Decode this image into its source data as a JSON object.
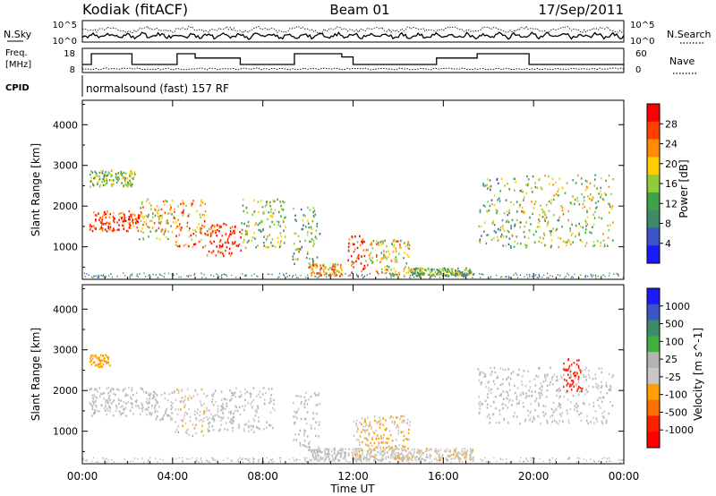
{
  "header": {
    "station": "Kodiak (fitACF)",
    "beam": "Beam 01",
    "date": "17/Sep/2011"
  },
  "noise_panel": {
    "left_label": "N.Sky",
    "right_label": "N.Search",
    "tick_top_left": "10^5",
    "tick_bottom_left": "10^0",
    "tick_top_right": "10^5",
    "tick_bottom_right": "10^0"
  },
  "freq_panel": {
    "left_label_line1": "Freq.",
    "left_label_line2": "[MHz]",
    "right_label": "Nave",
    "left_ticks": [
      "18",
      "8"
    ],
    "right_ticks": [
      "60",
      "0"
    ]
  },
  "cpid_panel": {
    "label": "CPID",
    "mode": "normalsound (fast) 157 RF"
  },
  "colors": {
    "power_scale": [
      "#1a1aff",
      "#3b55c8",
      "#3f8a6a",
      "#3fa24a",
      "#8fcc3a",
      "#ffcc00",
      "#ff8c00",
      "#ff4000",
      "#ff0000"
    ],
    "velocity_scale": [
      "#1a1aff",
      "#3b55c8",
      "#3f8a6a",
      "#40b040",
      "#b4b4b4",
      "#c8c8c8",
      "#ffa000",
      "#ff7000",
      "#ff2000",
      "#ff0000"
    ],
    "ground_scatter": "#b4b4b4"
  },
  "chart_data": [
    {
      "type": "heatmap",
      "panel": "power",
      "x": [
        "00:00",
        "04:00",
        "08:00",
        "12:00",
        "16:00",
        "20:00",
        "00:00"
      ],
      "xlim_hours": [
        0,
        24
      ],
      "ylabel": "Slant Range [km]",
      "yticks": [
        1000,
        2000,
        3000,
        4000
      ],
      "ylim": [
        200,
        4600
      ],
      "colorbar_label": "Power [dB]",
      "colorbar_ticks": [
        "28",
        "24",
        "20",
        "16",
        "12",
        "8",
        "4"
      ],
      "clim": [
        0,
        30
      ],
      "echo_regions": [
        {
          "t0": 0.3,
          "t1": 2.5,
          "r0": 1400,
          "r1": 1900,
          "level": 26
        },
        {
          "t0": 0.3,
          "t1": 2.3,
          "r0": 2500,
          "r1": 2900,
          "level": 14
        },
        {
          "t0": 2.5,
          "t1": 4.0,
          "r0": 1200,
          "r1": 2200,
          "level": 18
        },
        {
          "t0": 4.0,
          "t1": 5.5,
          "r0": 1000,
          "r1": 2200,
          "level": 22
        },
        {
          "t0": 5.5,
          "t1": 7.0,
          "r0": 800,
          "r1": 1600,
          "level": 27
        },
        {
          "t0": 7.0,
          "t1": 9.0,
          "r0": 1000,
          "r1": 2200,
          "level": 15
        },
        {
          "t0": 9.3,
          "t1": 10.5,
          "r0": 600,
          "r1": 2000,
          "level": 12
        },
        {
          "t0": 10.0,
          "t1": 11.5,
          "r0": 300,
          "r1": 600,
          "level": 20
        },
        {
          "t0": 11.7,
          "t1": 12.5,
          "r0": 300,
          "r1": 1300,
          "level": 27
        },
        {
          "t0": 12.5,
          "t1": 14.5,
          "r0": 300,
          "r1": 1200,
          "level": 18
        },
        {
          "t0": 14.5,
          "t1": 17.3,
          "r0": 300,
          "r1": 500,
          "level": 12
        },
        {
          "t0": 17.5,
          "t1": 19.5,
          "r0": 1000,
          "r1": 2700,
          "level": 12
        },
        {
          "t0": 19.5,
          "t1": 23.5,
          "r0": 1000,
          "r1": 2800,
          "level": 16
        }
      ]
    },
    {
      "type": "heatmap",
      "panel": "velocity",
      "x": [
        "00:00",
        "04:00",
        "08:00",
        "12:00",
        "16:00",
        "20:00",
        "00:00"
      ],
      "xlim_hours": [
        0,
        24
      ],
      "xlabel": "Time UT",
      "ylabel": "Slant Range [km]",
      "yticks": [
        1000,
        2000,
        3000,
        4000
      ],
      "ylim": [
        200,
        4600
      ],
      "colorbar_label": "Velocity [m s^-1]",
      "colorbar_ticks": [
        "1000",
        "500",
        "100",
        "25",
        "-25",
        "-100",
        "-500",
        "-1000"
      ],
      "clim": [
        -1000,
        1000
      ],
      "echo_regions": [
        {
          "t0": 0.3,
          "t1": 3.0,
          "r0": 1400,
          "r1": 2100,
          "level": 0
        },
        {
          "t0": 0.3,
          "t1": 1.2,
          "r0": 2600,
          "r1": 2900,
          "level": -300
        },
        {
          "t0": 3.0,
          "t1": 4.0,
          "r0": 1300,
          "r1": 2000,
          "level": 0
        },
        {
          "t0": 4.0,
          "t1": 5.5,
          "r0": 900,
          "r1": 2100,
          "level": -150
        },
        {
          "t0": 5.5,
          "t1": 8.5,
          "r0": 1000,
          "r1": 2100,
          "level": 0
        },
        {
          "t0": 9.3,
          "t1": 10.5,
          "r0": 600,
          "r1": 2000,
          "level": 0
        },
        {
          "t0": 10.0,
          "t1": 12.0,
          "r0": 300,
          "r1": 600,
          "level": 0
        },
        {
          "t0": 12.0,
          "t1": 14.5,
          "r0": 600,
          "r1": 1400,
          "level": -200
        },
        {
          "t0": 12.0,
          "t1": 17.3,
          "r0": 300,
          "r1": 600,
          "level": -150
        },
        {
          "t0": 17.5,
          "t1": 23.5,
          "r0": 1200,
          "r1": 2600,
          "level": 0
        },
        {
          "t0": 21.3,
          "t1": 22.2,
          "r0": 2000,
          "r1": 2800,
          "level": -700
        }
      ]
    }
  ]
}
